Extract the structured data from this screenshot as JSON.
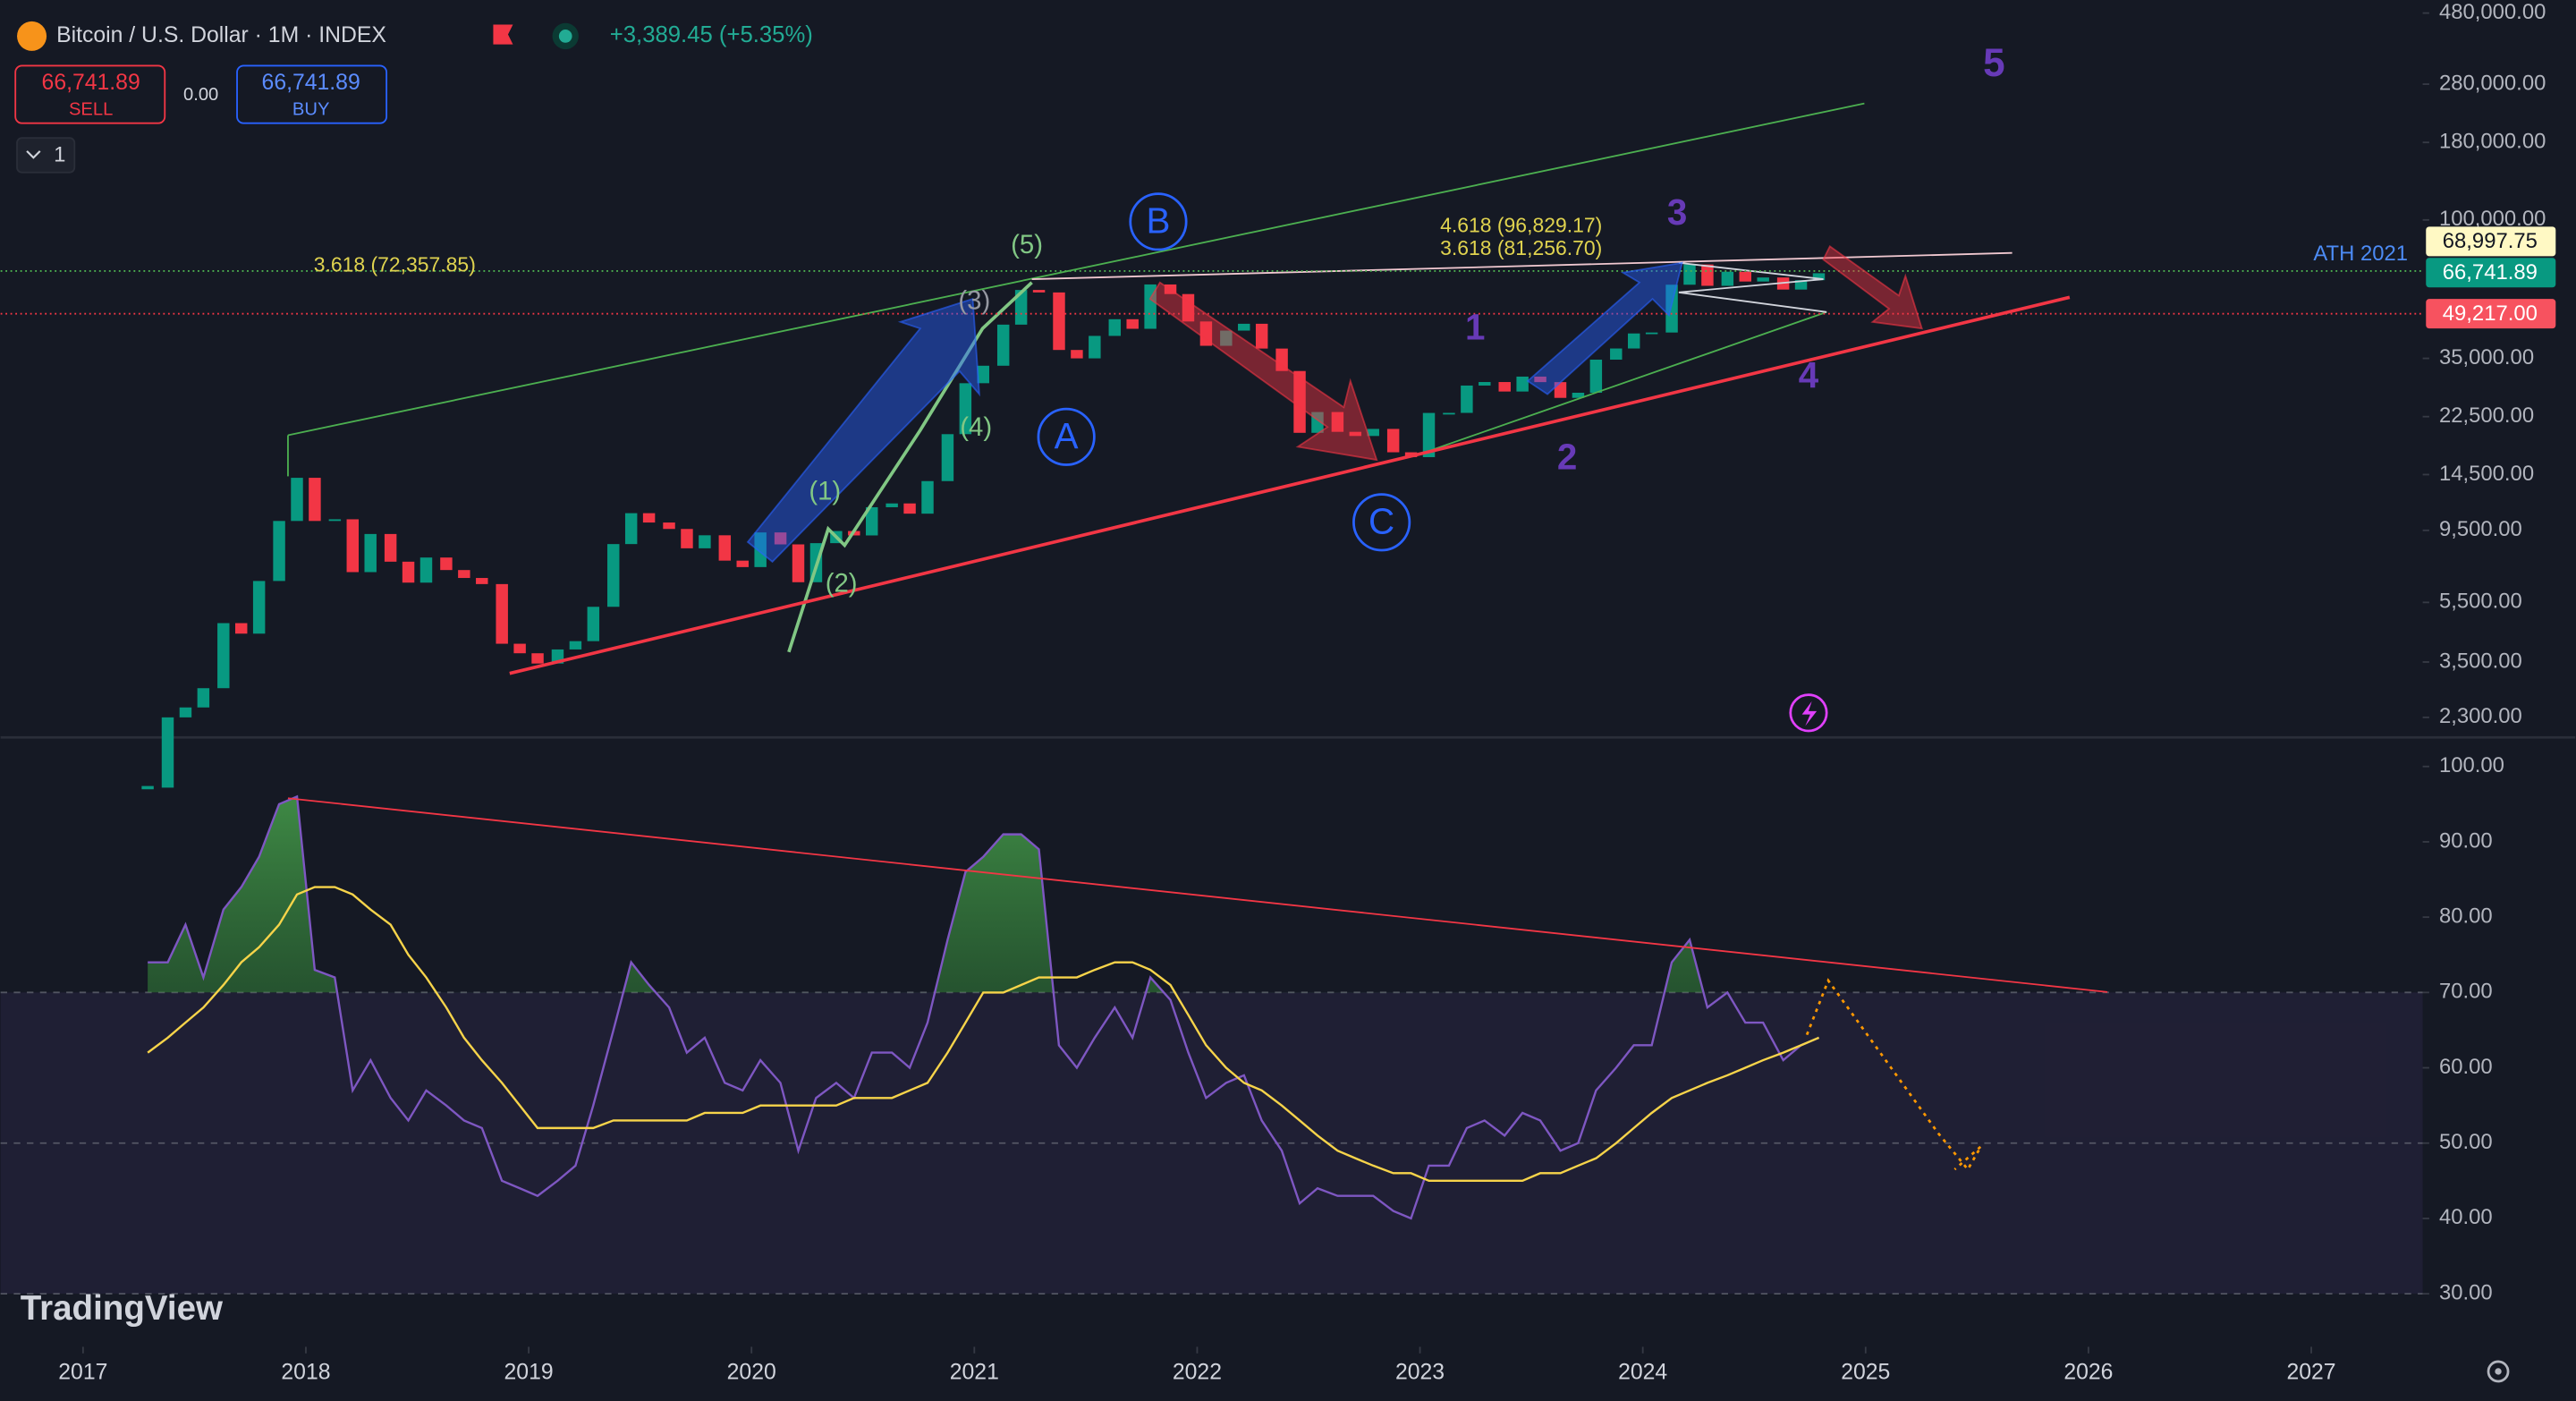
{
  "header": {
    "symbol": "Bitcoin / U.S. Dollar · 1M · INDEX",
    "change": "+3,389.45 (+5.35%)",
    "sell_price": "66,741.89",
    "sell": "SELL",
    "spread": "0.00",
    "buy_price": "66,741.89",
    "buy": "BUY",
    "interval": "1"
  },
  "annotations": {
    "wave_5": "5",
    "wave_3": "3",
    "wave_1": "1",
    "wave_2": "2",
    "wave_4": "4",
    "sub_1": "(1)",
    "sub_2": "(2)",
    "sub_3": "(3)",
    "sub_4": "(4)",
    "sub_5": "(5)",
    "abc_a": "A",
    "abc_b": "B",
    "abc_c": "C",
    "fib_left": "3.618 (72,357.85)",
    "fib_top": "4.618 (96,829.17)",
    "fib_mid": "3.618 (81,256.70)",
    "ath": "ATH 2021",
    "badge_ath": "68,997.75",
    "badge_last": "66,741.89",
    "badge_low": "49,217.00",
    "logo": "TradingView"
  },
  "chart_data": [
    {
      "type": "candlestick",
      "x": [
        2017.29,
        2017.38,
        2017.46,
        2017.54,
        2017.63,
        2017.71,
        2017.79,
        2017.88,
        2017.96,
        2018.04,
        2018.13,
        2018.21,
        2018.29,
        2018.38,
        2018.46,
        2018.54,
        2018.63,
        2018.71,
        2018.79,
        2018.88,
        2018.96,
        2019.04,
        2019.13,
        2019.21,
        2019.29,
        2019.38,
        2019.46,
        2019.54,
        2019.63,
        2019.71,
        2019.79,
        2019.88,
        2019.96,
        2020.04,
        2020.13,
        2020.21,
        2020.29,
        2020.38,
        2020.46,
        2020.54,
        2020.63,
        2020.71,
        2020.79,
        2020.88,
        2020.96,
        2021.04,
        2021.13,
        2021.21,
        2021.29,
        2021.38,
        2021.46,
        2021.54,
        2021.63,
        2021.71,
        2021.79,
        2021.88,
        2021.96,
        2022.04,
        2022.13,
        2022.21,
        2022.29,
        2022.38,
        2022.46,
        2022.54,
        2022.63,
        2022.71,
        2022.79,
        2022.88,
        2022.96,
        2023.04,
        2023.13,
        2023.21,
        2023.29,
        2023.38,
        2023.46,
        2023.54,
        2023.63,
        2023.71,
        2023.79,
        2023.88,
        2023.96,
        2024.04,
        2024.13,
        2024.21,
        2024.29,
        2024.38,
        2024.46,
        2024.54,
        2024.63,
        2024.71,
        2024.79
      ],
      "values": [
        1350,
        2300,
        2480,
        2870,
        4700,
        4340,
        6470,
        10200,
        14150,
        10200,
        10330,
        6920,
        9240,
        7490,
        6390,
        7730,
        7030,
        6620,
        6320,
        4020,
        3740,
        3460,
        3850,
        4100,
        5320,
        8560,
        10820,
        10080,
        9600,
        8290,
        9150,
        7550,
        7190,
        9350,
        8540,
        6410,
        8620,
        9450,
        9140,
        11320,
        11650,
        10780,
        13800,
        19700,
        28990,
        33100,
        45200,
        58800,
        57700,
        37300,
        35000,
        41500,
        47100,
        43800,
        61300,
        57000,
        46300,
        38500,
        43200,
        45500,
        37700,
        31800,
        19900,
        23300,
        20050,
        19430,
        20500,
        17170,
        16550,
        23140,
        23150,
        28480,
        29250,
        27220,
        30480,
        29230,
        25940,
        26970,
        34660,
        37720,
        42280,
        42580,
        61180,
        71330,
        60670,
        67520,
        62680,
        64630,
        58970,
        63330,
        66742
      ],
      "up_color": "#089981",
      "down_color": "#f23645",
      "log_scale": true,
      "ylim": [
        2000,
        530000
      ],
      "xlim": [
        2016.63,
        2027.5
      ],
      "yticks": [
        {
          "value": 2300,
          "label": "2,300.00"
        },
        {
          "value": 3500,
          "label": "3,500.00"
        },
        {
          "value": 5500,
          "label": "5,500.00"
        },
        {
          "value": 9500,
          "label": "9,500.00"
        },
        {
          "value": 14500,
          "label": "14,500.00"
        },
        {
          "value": 22500,
          "label": "22,500.00"
        },
        {
          "value": 35000,
          "label": "35,000.00"
        },
        {
          "value": 100000,
          "label": "100,000.00"
        },
        {
          "value": 180000,
          "label": "180,000.00"
        },
        {
          "value": 280000,
          "label": "280,000.00"
        },
        {
          "value": 480000,
          "label": "480,000.00"
        }
      ],
      "xticks": [
        2017,
        2018,
        2019,
        2020,
        2021,
        2022,
        2023,
        2024,
        2025,
        2026,
        2027
      ]
    },
    {
      "type": "line",
      "x": [
        2017.29,
        2017.38,
        2017.46,
        2017.54,
        2017.63,
        2017.71,
        2017.79,
        2017.88,
        2017.96,
        2018.04,
        2018.13,
        2018.21,
        2018.29,
        2018.38,
        2018.46,
        2018.54,
        2018.63,
        2018.71,
        2018.79,
        2018.88,
        2018.96,
        2019.04,
        2019.13,
        2019.21,
        2019.29,
        2019.38,
        2019.46,
        2019.54,
        2019.63,
        2019.71,
        2019.79,
        2019.88,
        2019.96,
        2020.04,
        2020.13,
        2020.21,
        2020.29,
        2020.38,
        2020.46,
        2020.54,
        2020.63,
        2020.71,
        2020.79,
        2020.88,
        2020.96,
        2021.04,
        2021.13,
        2021.21,
        2021.29,
        2021.38,
        2021.46,
        2021.54,
        2021.63,
        2021.71,
        2021.79,
        2021.88,
        2021.96,
        2022.04,
        2022.13,
        2022.21,
        2022.29,
        2022.38,
        2022.46,
        2022.54,
        2022.63,
        2022.71,
        2022.79,
        2022.88,
        2022.96,
        2023.04,
        2023.13,
        2023.21,
        2023.29,
        2023.38,
        2023.46,
        2023.54,
        2023.63,
        2023.71,
        2023.79,
        2023.88,
        2023.96,
        2024.04,
        2024.13,
        2024.21,
        2024.29,
        2024.38,
        2024.46,
        2024.54,
        2024.63,
        2024.71,
        2024.79
      ],
      "series": [
        {
          "color": "#7e57c2",
          "values": [
            74,
            74,
            79,
            72,
            81,
            84,
            88,
            95,
            96,
            73,
            72,
            57,
            61,
            56,
            53,
            57,
            55,
            53,
            52,
            45,
            44,
            43,
            45,
            47,
            55,
            65,
            74,
            71,
            68,
            62,
            64,
            58,
            57,
            61,
            58,
            49,
            56,
            58,
            56,
            62,
            62,
            60,
            66,
            77,
            86,
            88,
            91,
            91,
            89,
            63,
            60,
            64,
            68,
            64,
            72,
            69,
            62,
            56,
            58,
            59,
            53,
            49,
            42,
            44,
            43,
            43,
            43,
            41,
            40,
            47,
            47,
            52,
            53,
            51,
            54,
            53,
            49,
            50,
            57,
            60,
            63,
            63,
            74,
            77,
            68,
            70,
            66,
            66,
            61,
            63,
            64
          ]
        },
        {
          "color": "#f7d44a",
          "values": [
            62,
            64,
            66,
            68,
            71,
            74,
            76,
            79,
            83,
            84,
            84,
            83,
            81,
            79,
            75,
            72,
            68,
            64,
            61,
            58,
            55,
            52,
            52,
            52,
            52,
            53,
            53,
            53,
            53,
            53,
            54,
            54,
            54,
            55,
            55,
            55,
            55,
            55,
            56,
            56,
            56,
            57,
            58,
            62,
            66,
            70,
            70,
            71,
            72,
            72,
            72,
            73,
            74,
            74,
            73,
            71,
            67,
            63,
            60,
            58,
            57,
            55,
            53,
            51,
            49,
            48,
            47,
            46,
            46,
            45,
            45,
            45,
            45,
            45,
            45,
            46,
            46,
            47,
            48,
            50,
            52,
            54,
            56,
            57,
            58,
            59,
            60,
            61,
            62,
            63,
            64
          ]
        }
      ],
      "ylim": [
        29.5,
        103.2
      ],
      "xlim": [
        2016.63,
        2027.5
      ],
      "hlines": [
        70,
        50,
        30
      ],
      "yticks": [
        {
          "value": 30,
          "label": "30.00"
        },
        {
          "value": 40,
          "label": "40.00"
        },
        {
          "value": 50,
          "label": "50.00"
        },
        {
          "value": 60,
          "label": "60.00"
        },
        {
          "value": 70,
          "label": "70.00"
        },
        {
          "value": 80,
          "label": "80.00"
        },
        {
          "value": 90,
          "label": "90.00"
        },
        {
          "value": 100,
          "label": "100.00"
        }
      ]
    }
  ]
}
